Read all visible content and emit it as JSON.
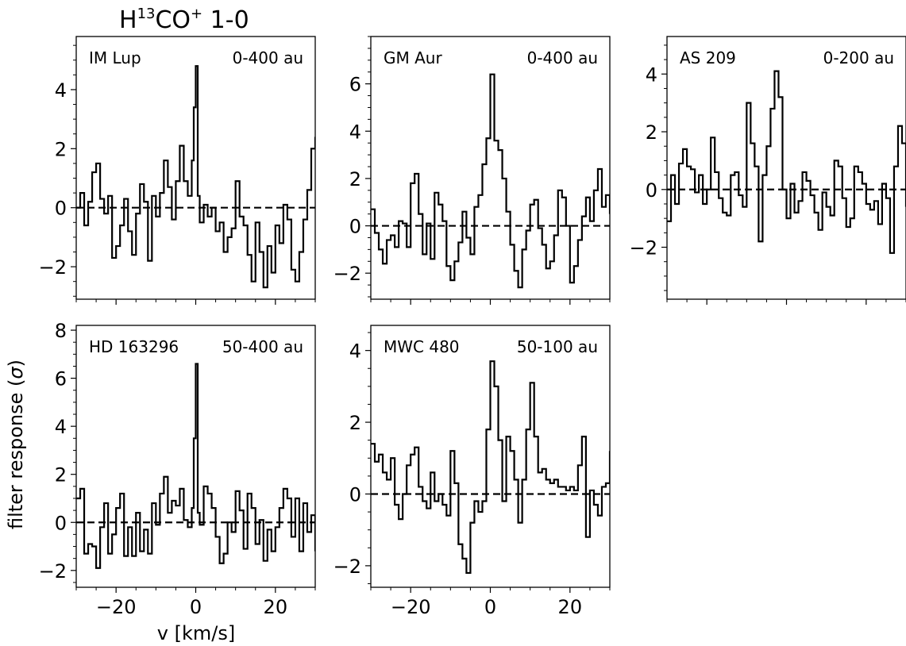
{
  "figure": {
    "title": {
      "prefix": "H",
      "sup1": "13",
      "middle": "CO",
      "sup2": "+",
      "suffix": " 1-0"
    },
    "xlabel": "v [km/s]",
    "ylabel_prefix": "filter response (",
    "ylabel_symbol": "σ",
    "ylabel_suffix": ")"
  },
  "chart_data": [
    {
      "type": "line",
      "name": "IM Lup",
      "range_label": "0-400 au",
      "xlim": [
        -30,
        30
      ],
      "ylim": [
        -3.1,
        5.8
      ],
      "xticks": [
        -20,
        0,
        20
      ],
      "yticks": [
        -2,
        0,
        2,
        4
      ],
      "show_x_ticklabels": false,
      "baseline": 0,
      "x": [
        -30,
        -29,
        -28,
        -27,
        -26,
        -25,
        -24,
        -23,
        -22,
        -21,
        -20,
        -19,
        -18,
        -17,
        -16,
        -15,
        -14,
        -13,
        -12,
        -11,
        -10,
        -9,
        -8,
        -7,
        -6,
        -5,
        -4,
        -3,
        -2,
        -1,
        -0.5,
        0,
        0.5,
        1,
        2,
        3,
        4,
        5,
        6,
        7,
        8,
        9,
        10,
        11,
        12,
        13,
        14,
        15,
        16,
        17,
        18,
        19,
        20,
        21,
        22,
        23,
        24,
        25,
        26,
        27,
        28,
        29,
        30
      ],
      "y": [
        0,
        0.5,
        -0.6,
        0.2,
        1.2,
        1.5,
        0.3,
        -0.2,
        0.4,
        -1.7,
        -1.3,
        -0.6,
        0.3,
        -0.8,
        -1.6,
        -0.2,
        0.8,
        0.2,
        -1.8,
        0.4,
        -0.3,
        0.5,
        1.6,
        0.7,
        -0.4,
        0.9,
        2.1,
        0.9,
        0.4,
        1.6,
        3.4,
        4.8,
        0.4,
        -0.5,
        0.1,
        -0.3,
        0.0,
        -0.8,
        -0.5,
        -1.5,
        -1.0,
        -0.7,
        0.9,
        -0.3,
        -0.6,
        -1.6,
        -2.5,
        -0.5,
        -1.5,
        -2.7,
        -1.3,
        -2.2,
        -0.6,
        -1.2,
        0.1,
        -0.4,
        -2.1,
        -2.5,
        -1.5,
        -0.4,
        0.6,
        2.0,
        2.4
      ]
    },
    {
      "type": "line",
      "name": "GM Aur",
      "range_label": "0-400 au",
      "xlim": [
        -30,
        30
      ],
      "ylim": [
        -3.1,
        8.0
      ],
      "xticks": [
        -20,
        0,
        20
      ],
      "yticks": [
        -2,
        0,
        2,
        4,
        6
      ],
      "show_x_ticklabels": false,
      "baseline": 0,
      "x": [
        -30,
        -29,
        -28,
        -27,
        -26,
        -25,
        -24,
        -23,
        -22,
        -21,
        -20,
        -19,
        -18,
        -17,
        -16,
        -15,
        -14,
        -13,
        -12,
        -11,
        -10,
        -9,
        -8,
        -7,
        -6,
        -5,
        -4,
        -3,
        -2,
        -1,
        0,
        1,
        2,
        3,
        4,
        5,
        6,
        7,
        8,
        9,
        10,
        11,
        12,
        13,
        14,
        15,
        16,
        17,
        18,
        19,
        20,
        21,
        22,
        23,
        24,
        25,
        26,
        27,
        28,
        29,
        30
      ],
      "y": [
        0.7,
        -0.3,
        -1.0,
        -1.6,
        -0.6,
        -0.4,
        -0.9,
        0.2,
        0.1,
        -0.9,
        1.8,
        2.2,
        0.5,
        -1.2,
        0.1,
        -1.4,
        1.4,
        0.9,
        0.2,
        -1.7,
        -2.3,
        -1.5,
        -0.7,
        0.6,
        -0.5,
        -1.2,
        0.8,
        1.3,
        2.6,
        3.7,
        6.4,
        3.6,
        3.2,
        2.0,
        0.6,
        -0.8,
        -1.9,
        -2.6,
        -1.0,
        -0.2,
        0.9,
        1.1,
        -0.1,
        -0.8,
        -1.8,
        -1.5,
        -0.4,
        1.5,
        1.2,
        0.0,
        -2.4,
        -1.7,
        -0.6,
        0.4,
        1.2,
        0.2,
        1.5,
        2.4,
        0.8,
        1.3,
        0.5
      ]
    },
    {
      "type": "line",
      "name": "AS 209",
      "range_label": "0-200 au",
      "xlim": [
        -30,
        30
      ],
      "ylim": [
        -3.8,
        5.3
      ],
      "xticks": [
        -20,
        0,
        20
      ],
      "yticks": [
        -2,
        0,
        2,
        4
      ],
      "show_x_ticklabels": false,
      "baseline": 0,
      "x": [
        -30,
        -29,
        -28,
        -27,
        -26,
        -25,
        -24,
        -23,
        -22,
        -21,
        -20,
        -19,
        -18,
        -17,
        -16,
        -15,
        -14,
        -13,
        -12,
        -11,
        -10,
        -9,
        -8,
        -7,
        -6,
        -5,
        -4,
        -3,
        -2,
        -1,
        0,
        1,
        2,
        3,
        4,
        5,
        6,
        7,
        8,
        9,
        10,
        11,
        12,
        13,
        14,
        15,
        16,
        17,
        18,
        19,
        20,
        21,
        22,
        23,
        24,
        25,
        26,
        27,
        28,
        29,
        30
      ],
      "y": [
        -1.1,
        0.5,
        -0.5,
        0.9,
        1.4,
        0.8,
        0.7,
        -0.1,
        0.5,
        -0.5,
        0.0,
        1.8,
        0.6,
        -0.3,
        -0.8,
        -0.9,
        0.5,
        0.6,
        -0.2,
        -0.6,
        3.0,
        1.6,
        0.8,
        -1.8,
        0.5,
        1.5,
        2.8,
        4.1,
        3.2,
        0.0,
        -1.0,
        0.2,
        -0.8,
        -0.4,
        0.6,
        0.3,
        -0.2,
        -0.8,
        -1.4,
        -0.1,
        -0.6,
        -0.9,
        1.0,
        0.8,
        -0.3,
        -1.3,
        -1.0,
        0.8,
        0.6,
        0.2,
        -0.5,
        -0.7,
        -0.4,
        -1.2,
        0.2,
        -0.3,
        -2.2,
        0.8,
        2.2,
        1.6,
        -0.6
      ]
    },
    {
      "type": "line",
      "name": "HD 163296",
      "range_label": "50-400 au",
      "xlim": [
        -30,
        30
      ],
      "ylim": [
        -2.7,
        8.2
      ],
      "xticks": [
        -20,
        0,
        20
      ],
      "yticks": [
        -2,
        0,
        2,
        4,
        6,
        8
      ],
      "show_x_ticklabels": true,
      "baseline": 0,
      "x": [
        -30,
        -29,
        -28,
        -27,
        -26,
        -25,
        -24,
        -23,
        -22,
        -21,
        -20,
        -19,
        -18,
        -17,
        -16,
        -15,
        -14,
        -13,
        -12,
        -11,
        -10,
        -9,
        -8,
        -7,
        -6,
        -5,
        -4,
        -3,
        -2,
        -1,
        -0.5,
        0,
        0.5,
        1,
        2,
        3,
        4,
        5,
        6,
        7,
        8,
        9,
        10,
        11,
        12,
        13,
        14,
        15,
        16,
        17,
        18,
        19,
        20,
        21,
        22,
        23,
        24,
        25,
        26,
        27,
        28,
        29,
        30
      ],
      "y": [
        1.0,
        1.4,
        -1.3,
        -0.9,
        -1.0,
        -1.9,
        -0.2,
        0.8,
        -1.3,
        -0.5,
        0.6,
        1.2,
        -1.4,
        -0.2,
        -1.4,
        0.4,
        -1.2,
        -0.3,
        -1.3,
        0.8,
        -0.1,
        1.2,
        1.9,
        0.4,
        0.9,
        0.7,
        1.4,
        0.1,
        -0.2,
        0.6,
        3.5,
        6.6,
        0.4,
        -0.1,
        1.5,
        1.2,
        0.6,
        -0.6,
        -1.7,
        -1.3,
        0.0,
        -0.4,
        1.3,
        0.5,
        -1.1,
        1.2,
        0.6,
        -0.9,
        0.1,
        -1.6,
        -0.3,
        -1.2,
        -0.2,
        0.6,
        1.4,
        1.0,
        -0.6,
        1.0,
        -1.2,
        0.8,
        -0.4,
        0.3,
        -1.2
      ]
    },
    {
      "type": "line",
      "name": "MWC 480",
      "range_label": "50-100 au",
      "xlim": [
        -30,
        30
      ],
      "ylim": [
        -2.6,
        4.7
      ],
      "xticks": [
        -20,
        0,
        20
      ],
      "yticks": [
        -2,
        0,
        2,
        4
      ],
      "show_x_ticklabels": true,
      "baseline": 0,
      "x": [
        -30,
        -29,
        -28,
        -27,
        -26,
        -25,
        -24,
        -23,
        -22,
        -21,
        -20,
        -19,
        -18,
        -17,
        -16,
        -15,
        -14,
        -13,
        -12,
        -11,
        -10,
        -9,
        -8,
        -7,
        -6,
        -5,
        -4,
        -3,
        -2,
        -1,
        0,
        1,
        2,
        3,
        4,
        5,
        6,
        7,
        8,
        9,
        10,
        11,
        12,
        13,
        14,
        15,
        16,
        17,
        18,
        19,
        20,
        21,
        22,
        23,
        24,
        25,
        26,
        27,
        28,
        29,
        30
      ],
      "y": [
        1.4,
        0.9,
        1.1,
        0.6,
        0.4,
        1.0,
        -0.3,
        -0.7,
        0.0,
        0.8,
        1.1,
        1.3,
        0.2,
        -0.2,
        -0.4,
        0.6,
        -0.2,
        0.0,
        -0.3,
        -0.6,
        1.2,
        0.3,
        -1.4,
        -1.8,
        -2.2,
        -0.8,
        -0.2,
        -0.5,
        -0.2,
        1.8,
        3.7,
        3.0,
        1.5,
        -0.2,
        1.6,
        1.2,
        0.4,
        -0.8,
        0.4,
        1.8,
        3.1,
        1.6,
        0.6,
        0.7,
        0.4,
        0.3,
        0.4,
        0.2,
        0.2,
        0.1,
        0.2,
        0.1,
        0.8,
        1.6,
        -1.2,
        0.1,
        -0.3,
        -0.6,
        0.2,
        0.3,
        1.2
      ]
    }
  ]
}
